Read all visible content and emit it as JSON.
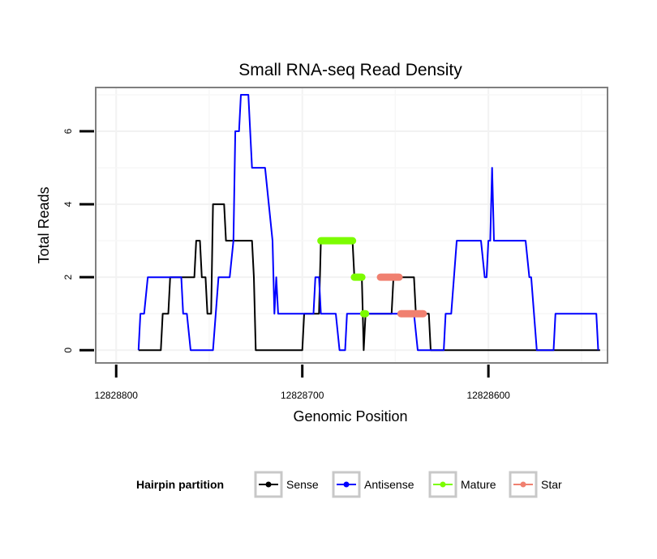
{
  "chart_data": {
    "type": "line",
    "title": "Small RNA-seq Read Density",
    "xlabel": "Genomic Position",
    "ylabel": "Total Reads",
    "x_reversed": true,
    "xlim": [
      12828811,
      12828536
    ],
    "ylim": [
      -0.35,
      7.2
    ],
    "x_ticks": [
      12828800,
      12828700,
      12828600
    ],
    "x_tick_labels": [
      "12828800",
      "12828700",
      "12828600"
    ],
    "y_ticks": [
      0,
      2,
      4,
      6
    ],
    "y_tick_labels": [
      "0",
      "2",
      "4",
      "6"
    ],
    "grid": true,
    "legend": {
      "title": "Hairpin partition",
      "position": "bottom",
      "entries": [
        "Sense",
        "Antisense",
        "Mature",
        "Star"
      ]
    },
    "series": [
      {
        "name": "Sense",
        "color": "#000000",
        "style": "line",
        "points": [
          [
            12828788,
            0
          ],
          [
            12828776,
            0
          ],
          [
            12828775,
            1
          ],
          [
            12828772,
            1
          ],
          [
            12828771,
            2
          ],
          [
            12828758,
            2
          ],
          [
            12828757,
            3
          ],
          [
            12828755,
            3
          ],
          [
            12828754,
            2
          ],
          [
            12828752,
            2
          ],
          [
            12828751,
            1
          ],
          [
            12828749,
            1
          ],
          [
            12828748,
            4
          ],
          [
            12828742,
            4
          ],
          [
            12828741,
            3
          ],
          [
            12828727,
            3
          ],
          [
            12828726,
            2
          ],
          [
            12828725,
            0
          ],
          [
            12828700,
            0
          ],
          [
            12828699,
            1
          ],
          [
            12828691,
            1
          ],
          [
            12828690,
            3
          ],
          [
            12828673,
            3
          ],
          [
            12828672,
            2
          ],
          [
            12828668,
            2
          ],
          [
            12828667,
            0
          ],
          [
            12828666,
            1
          ],
          [
            12828652,
            1
          ],
          [
            12828651,
            2
          ],
          [
            12828640,
            2
          ],
          [
            12828639,
            1
          ],
          [
            12828632,
            1
          ],
          [
            12828631,
            0
          ],
          [
            12828595,
            0
          ],
          [
            12828540,
            0
          ]
        ]
      },
      {
        "name": "Antisense",
        "color": "#0000ff",
        "style": "line",
        "points": [
          [
            12828788,
            0
          ],
          [
            12828787,
            1
          ],
          [
            12828785,
            1
          ],
          [
            12828783,
            2
          ],
          [
            12828765,
            2
          ],
          [
            12828764,
            1
          ],
          [
            12828762,
            1
          ],
          [
            12828760,
            0
          ],
          [
            12828748,
            0
          ],
          [
            12828745,
            2
          ],
          [
            12828739,
            2
          ],
          [
            12828737,
            3
          ],
          [
            12828736,
            6
          ],
          [
            12828734,
            6
          ],
          [
            12828733,
            7
          ],
          [
            12828729,
            7
          ],
          [
            12828727,
            5
          ],
          [
            12828720,
            5
          ],
          [
            12828718,
            4
          ],
          [
            12828716,
            3
          ],
          [
            12828715,
            1
          ],
          [
            12828714,
            2
          ],
          [
            12828713,
            1
          ],
          [
            12828694,
            1
          ],
          [
            12828693,
            2
          ],
          [
            12828691,
            2
          ],
          [
            12828690,
            1
          ],
          [
            12828682,
            1
          ],
          [
            12828680,
            0
          ],
          [
            12828677,
            0
          ],
          [
            12828676,
            1
          ],
          [
            12828640,
            1
          ],
          [
            12828638,
            0
          ],
          [
            12828624,
            0
          ],
          [
            12828623,
            1
          ],
          [
            12828620,
            1
          ],
          [
            12828617,
            3
          ],
          [
            12828604,
            3
          ],
          [
            12828602,
            2
          ],
          [
            12828601,
            2
          ],
          [
            12828600,
            3
          ],
          [
            12828599,
            3
          ],
          [
            12828598,
            5
          ],
          [
            12828597,
            3
          ],
          [
            12828580,
            3
          ],
          [
            12828578,
            2
          ],
          [
            12828577,
            2
          ],
          [
            12828574,
            0
          ],
          [
            12828565,
            0
          ],
          [
            12828564,
            1
          ],
          [
            12828542,
            1
          ],
          [
            12828541,
            0
          ]
        ]
      },
      {
        "name": "Mature",
        "color": "#7cfc00",
        "style": "segments",
        "segments": [
          [
            12828690,
            12828673,
            3
          ],
          [
            12828672,
            12828668,
            2
          ],
          [
            12828667,
            12828666,
            1
          ]
        ]
      },
      {
        "name": "Star",
        "color": "#f08070",
        "style": "segments",
        "segments": [
          [
            12828658,
            12828648,
            2
          ],
          [
            12828647,
            12828635,
            1
          ]
        ]
      }
    ]
  }
}
